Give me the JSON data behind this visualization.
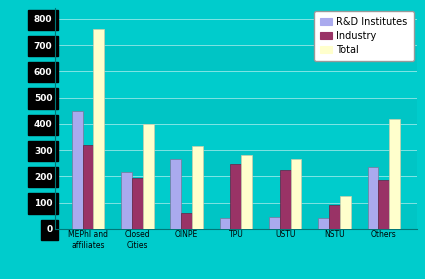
{
  "categories": [
    "MEPhI and\naffiliates",
    "Closed\nCities",
    "OINPE",
    "TPU",
    "USTU",
    "NSTU",
    "Others"
  ],
  "rd_institutes": [
    450,
    215,
    265,
    40,
    45,
    40,
    235
  ],
  "industry": [
    320,
    195,
    60,
    245,
    225,
    90,
    185
  ],
  "total": [
    760,
    400,
    315,
    280,
    265,
    125,
    420
  ],
  "bar_colors": {
    "rd": "#aaaaee",
    "industry": "#993366",
    "total": "#ffffcc"
  },
  "bg_color": "#00cccc",
  "yaxis_bg": "#000000",
  "legend_labels": [
    "R&D Institutes",
    "Industry",
    "Total"
  ],
  "ylim": [
    0,
    840
  ],
  "yticks": [
    0,
    100,
    200,
    300,
    400,
    500,
    600,
    700,
    800
  ],
  "bar_width": 0.22,
  "grid_color": "#33dddd"
}
